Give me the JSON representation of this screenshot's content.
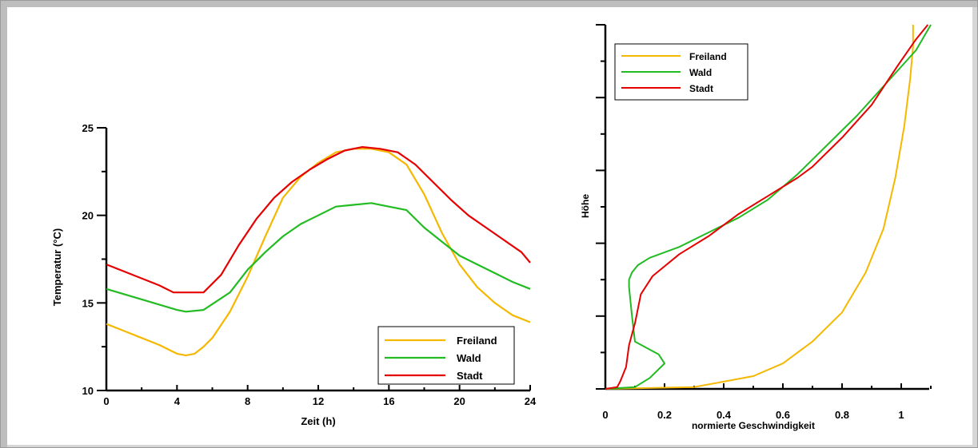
{
  "colors": {
    "freiland": "#f5b800",
    "wald": "#22bb22",
    "stadt": "#e60000"
  },
  "chart_data": [
    {
      "type": "line",
      "xlabel": "Zeit (h)",
      "ylabel": "Temperatur (°C)",
      "xlim": [
        0,
        24
      ],
      "ylim": [
        10,
        25
      ],
      "xticks": [
        "0",
        "4",
        "8",
        "12",
        "16",
        "20",
        "24"
      ],
      "yticks": [
        "10",
        "15",
        "20",
        "25"
      ],
      "legend_position": "bottom-right",
      "series": [
        {
          "name": "Freiland",
          "color": "#f5b800",
          "x": [
            0,
            1,
            2,
            3,
            4,
            4.5,
            5,
            5.5,
            6,
            7,
            8,
            9,
            10,
            11,
            12,
            13,
            14,
            15,
            16,
            17,
            18,
            19,
            20,
            21,
            22,
            23,
            24
          ],
          "y": [
            13.8,
            13.4,
            13.0,
            12.6,
            12.1,
            12.0,
            12.1,
            12.5,
            13.0,
            14.5,
            16.5,
            18.8,
            21.0,
            22.2,
            23.0,
            23.6,
            23.8,
            23.8,
            23.6,
            22.9,
            21.2,
            19.0,
            17.2,
            15.9,
            15.0,
            14.3,
            13.9
          ]
        },
        {
          "name": "Wald",
          "color": "#22bb22",
          "x": [
            0,
            2,
            4,
            4.5,
            5.5,
            7,
            8,
            9,
            10,
            11,
            12,
            13,
            14,
            15,
            16,
            17,
            18,
            19,
            20,
            21,
            22,
            23,
            24
          ],
          "y": [
            15.8,
            15.2,
            14.6,
            14.5,
            14.6,
            15.6,
            16.9,
            17.9,
            18.8,
            19.5,
            20.0,
            20.5,
            20.6,
            20.7,
            20.5,
            20.3,
            19.3,
            18.5,
            17.7,
            17.2,
            16.7,
            16.2,
            15.8
          ]
        },
        {
          "name": "Stadt",
          "color": "#e60000",
          "x": [
            0,
            1,
            2,
            3,
            3.8,
            5,
            5.5,
            6.5,
            7.5,
            8.5,
            9.5,
            10.5,
            11.5,
            12.5,
            13.5,
            14.5,
            15.5,
            16.5,
            17.5,
            18.5,
            19.5,
            20.5,
            21.5,
            22.5,
            23.5,
            24
          ],
          "y": [
            17.2,
            16.8,
            16.4,
            16.0,
            15.6,
            15.6,
            15.6,
            16.6,
            18.3,
            19.8,
            21.0,
            21.9,
            22.6,
            23.2,
            23.7,
            23.9,
            23.8,
            23.6,
            22.9,
            21.9,
            20.9,
            20.0,
            19.3,
            18.6,
            17.9,
            17.3
          ]
        }
      ]
    },
    {
      "type": "line",
      "xlabel": "normierte Geschwindigkeit",
      "ylabel": "Höhe",
      "xlim": [
        0,
        1.1
      ],
      "ylim": [
        0,
        10
      ],
      "xticks": [
        "0",
        "0.2",
        "0.4",
        "0.6",
        "0.8",
        "1"
      ],
      "yticks": [],
      "legend_position": "top-left",
      "series": [
        {
          "name": "Freiland",
          "color": "#f5b800",
          "x": [
            0.0,
            0.3,
            0.4,
            0.5,
            0.6,
            0.7,
            0.8,
            0.88,
            0.94,
            0.98,
            1.01,
            1.03,
            1.04,
            1.04
          ],
          "y": [
            0.0,
            0.05,
            0.2,
            0.35,
            0.7,
            1.3,
            2.1,
            3.2,
            4.4,
            5.8,
            7.2,
            8.5,
            9.4,
            10.0
          ]
        },
        {
          "name": "Wald",
          "color": "#22bb22",
          "x": [
            0.0,
            0.1,
            0.15,
            0.2,
            0.18,
            0.1,
            0.09,
            0.08,
            0.08,
            0.09,
            0.11,
            0.15,
            0.25,
            0.35,
            0.45,
            0.55,
            0.65,
            0.75,
            0.85,
            0.95,
            1.05,
            1.1
          ],
          "y": [
            0.0,
            0.05,
            0.3,
            0.7,
            0.95,
            1.3,
            2.0,
            2.8,
            3.0,
            3.2,
            3.4,
            3.6,
            3.9,
            4.3,
            4.7,
            5.2,
            5.9,
            6.7,
            7.5,
            8.4,
            9.3,
            10.0
          ]
        },
        {
          "name": "Stadt",
          "color": "#e60000",
          "x": [
            0.0,
            0.04,
            0.05,
            0.07,
            0.08,
            0.1,
            0.12,
            0.16,
            0.25,
            0.35,
            0.45,
            0.55,
            0.65,
            0.7,
            0.8,
            0.9,
            0.99,
            1.05,
            1.09
          ],
          "y": [
            0.0,
            0.05,
            0.2,
            0.6,
            1.2,
            1.8,
            2.6,
            3.1,
            3.7,
            4.2,
            4.8,
            5.3,
            5.8,
            6.1,
            6.9,
            7.8,
            8.9,
            9.6,
            10.0
          ]
        }
      ]
    }
  ]
}
